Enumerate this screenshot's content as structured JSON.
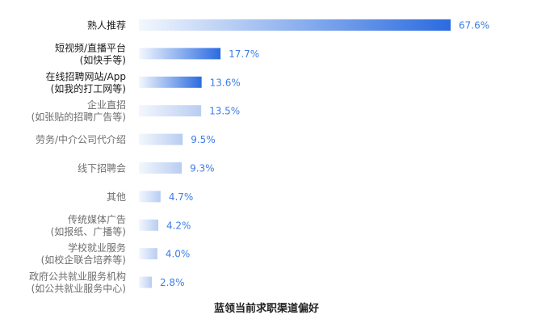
{
  "chart_data": {
    "type": "bar",
    "orientation": "horizontal",
    "title": "蓝领当前求职渠道偏好",
    "xlabel": "",
    "ylabel": "",
    "xlim": [
      0,
      67.6
    ],
    "grid": false,
    "legend": "none",
    "categories": [
      [
        "熟人推荐"
      ],
      [
        "短视频/直播平台",
        "(如快手等)"
      ],
      [
        "在线招聘网站/App",
        "(如我的打工网等)"
      ],
      [
        "企业直招",
        "(如张贴的招聘广告等)"
      ],
      [
        "劳务/中介公司代介绍"
      ],
      [
        "线下招聘会"
      ],
      [
        "其他"
      ],
      [
        "传统媒体广告",
        "(如报纸、广播等)"
      ],
      [
        "学校就业服务",
        "(如校企联合培养等)"
      ],
      [
        "政府公共就业服务机构",
        "(如公共就业服务中心)"
      ]
    ],
    "values": [
      67.6,
      17.7,
      13.6,
      13.5,
      9.5,
      9.3,
      4.7,
      4.2,
      4.0,
      2.8
    ],
    "value_labels": [
      "67.6%",
      "17.7%",
      "13.6%",
      "13.5%",
      "9.5%",
      "9.3%",
      "4.7%",
      "4.2%",
      "4.0%",
      "2.8%"
    ],
    "colors": {
      "bar_end": "#2a6be0",
      "bar_start": "#f3f7fd",
      "value_text": "#3d7ee6",
      "label_dark": "#1a1a1a",
      "label_light": "#6e6e6e",
      "title_text": "#222222"
    },
    "highlight_indices": [
      0,
      1,
      2
    ]
  }
}
